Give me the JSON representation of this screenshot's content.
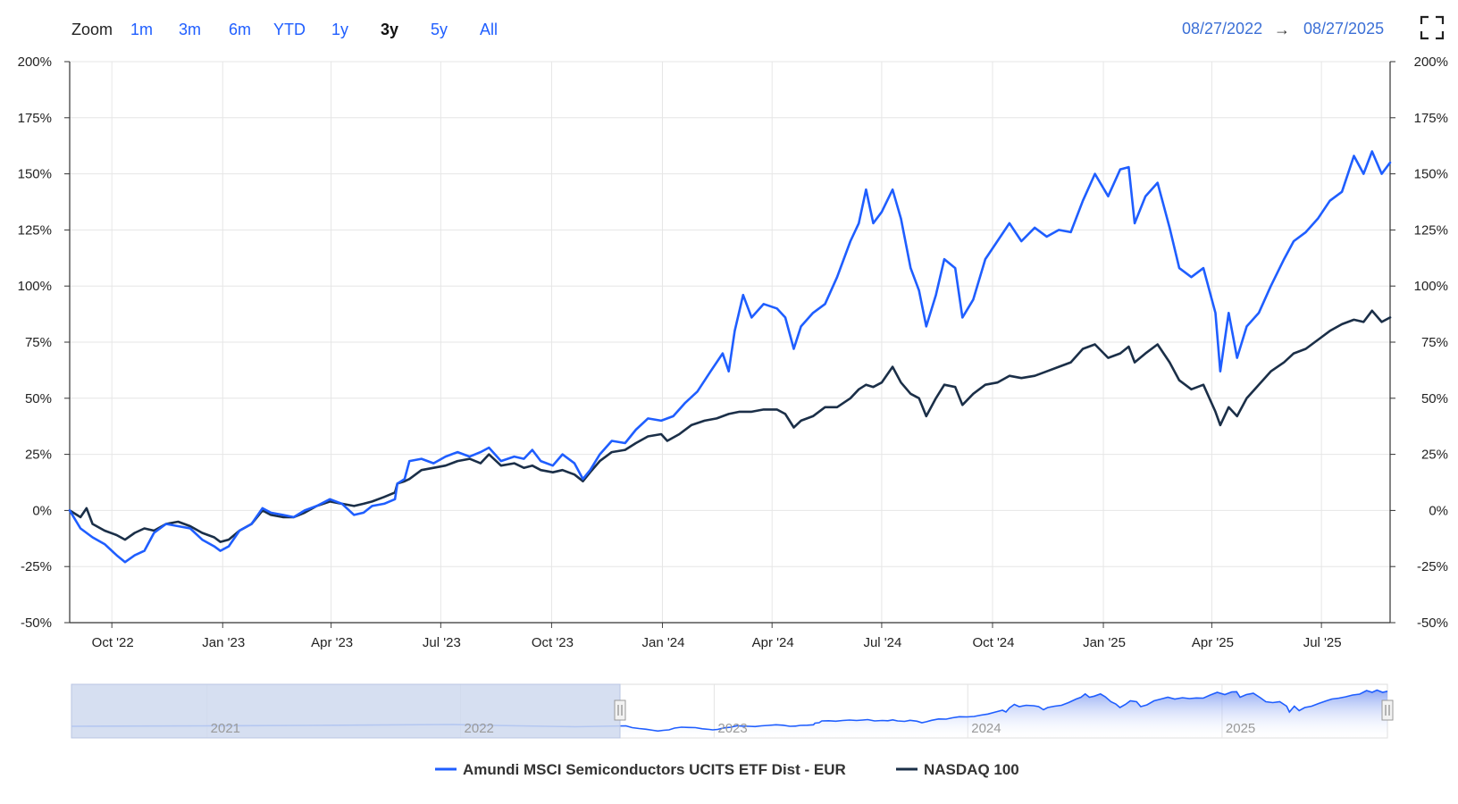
{
  "toolbar": {
    "zoom_label": "Zoom",
    "zoom_buttons": [
      "1m",
      "3m",
      "6m",
      "YTD",
      "1y",
      "3y",
      "5y",
      "All"
    ],
    "active_zoom": "3y",
    "range_from": "08/27/2022",
    "range_arrow": "→",
    "range_to": "08/27/2025",
    "fullscreen_icon": "fullscreen-icon"
  },
  "colors": {
    "etf": "#1f5eff",
    "nasdaq": "#1b2f48",
    "grid": "#e6e6e6",
    "navigator_fill": "#cfd9ee"
  },
  "navigator": {
    "year_labels": [
      "2021",
      "2022",
      "2023",
      "2024",
      "2025"
    ]
  },
  "chart_data": {
    "type": "line",
    "y_ticks": [
      "200%",
      "175%",
      "150%",
      "125%",
      "100%",
      "75%",
      "50%",
      "25%",
      "0%",
      "-25%",
      "-50%"
    ],
    "ylim": [
      -50,
      200
    ],
    "y_unit": "%",
    "x_tick_labels": [
      "Oct '22",
      "Jan '23",
      "Apr '23",
      "Jul '23",
      "Oct '23",
      "Jan '24",
      "Apr '24",
      "Jul '24",
      "Oct '24",
      "Jan '25",
      "Apr '25",
      "Jul '25"
    ],
    "x_tick_dates": [
      "2022-10-01",
      "2023-01-01",
      "2023-04-01",
      "2023-07-01",
      "2023-10-01",
      "2024-01-01",
      "2024-04-01",
      "2024-07-01",
      "2024-10-01",
      "2025-01-01",
      "2025-04-01",
      "2025-07-01"
    ],
    "xlim": [
      "2022-08-27",
      "2025-08-27"
    ],
    "grid": true,
    "legend_position": "bottom",
    "series": [
      {
        "name": "Amundi MSCI Semiconductors UCITS ETF Dist - EUR",
        "color": "#1f5eff",
        "points": [
          [
            "2022-08-27",
            0
          ],
          [
            "2022-09-05",
            -8
          ],
          [
            "2022-09-15",
            -12
          ],
          [
            "2022-09-25",
            -15
          ],
          [
            "2022-10-05",
            -20
          ],
          [
            "2022-10-12",
            -23
          ],
          [
            "2022-10-20",
            -20
          ],
          [
            "2022-10-28",
            -18
          ],
          [
            "2022-11-05",
            -10
          ],
          [
            "2022-11-15",
            -6
          ],
          [
            "2022-11-25",
            -7
          ],
          [
            "2022-12-05",
            -8
          ],
          [
            "2022-12-15",
            -13
          ],
          [
            "2022-12-25",
            -16
          ],
          [
            "2022-12-30",
            -18
          ],
          [
            "2023-01-06",
            -16
          ],
          [
            "2023-01-15",
            -9
          ],
          [
            "2023-01-25",
            -6
          ],
          [
            "2023-02-03",
            1
          ],
          [
            "2023-02-10",
            -1
          ],
          [
            "2023-02-20",
            -2
          ],
          [
            "2023-03-01",
            -3
          ],
          [
            "2023-03-10",
            0
          ],
          [
            "2023-03-20",
            2
          ],
          [
            "2023-03-31",
            5
          ],
          [
            "2023-04-10",
            3
          ],
          [
            "2023-04-20",
            -2
          ],
          [
            "2023-04-28",
            -1
          ],
          [
            "2023-05-05",
            2
          ],
          [
            "2023-05-15",
            3
          ],
          [
            "2023-05-24",
            5
          ],
          [
            "2023-05-26",
            12
          ],
          [
            "2023-06-01",
            14
          ],
          [
            "2023-06-05",
            22
          ],
          [
            "2023-06-15",
            23
          ],
          [
            "2023-06-25",
            21
          ],
          [
            "2023-07-05",
            24
          ],
          [
            "2023-07-15",
            26
          ],
          [
            "2023-07-25",
            24
          ],
          [
            "2023-08-03",
            26
          ],
          [
            "2023-08-10",
            28
          ],
          [
            "2023-08-20",
            22
          ],
          [
            "2023-08-31",
            24
          ],
          [
            "2023-09-08",
            23
          ],
          [
            "2023-09-15",
            27
          ],
          [
            "2023-09-22",
            22
          ],
          [
            "2023-10-02",
            20
          ],
          [
            "2023-10-10",
            25
          ],
          [
            "2023-10-20",
            21
          ],
          [
            "2023-10-27",
            14
          ],
          [
            "2023-11-02",
            18
          ],
          [
            "2023-11-10",
            25
          ],
          [
            "2023-11-20",
            31
          ],
          [
            "2023-12-01",
            30
          ],
          [
            "2023-12-10",
            36
          ],
          [
            "2023-12-20",
            41
          ],
          [
            "2023-12-31",
            40
          ],
          [
            "2024-01-10",
            42
          ],
          [
            "2024-01-20",
            48
          ],
          [
            "2024-01-30",
            53
          ],
          [
            "2024-02-10",
            62
          ],
          [
            "2024-02-20",
            70
          ],
          [
            "2024-02-25",
            62
          ],
          [
            "2024-03-01",
            80
          ],
          [
            "2024-03-08",
            96
          ],
          [
            "2024-03-15",
            86
          ],
          [
            "2024-03-25",
            92
          ],
          [
            "2024-04-05",
            90
          ],
          [
            "2024-04-12",
            86
          ],
          [
            "2024-04-19",
            72
          ],
          [
            "2024-04-25",
            82
          ],
          [
            "2024-05-05",
            88
          ],
          [
            "2024-05-15",
            92
          ],
          [
            "2024-05-25",
            104
          ],
          [
            "2024-06-05",
            120
          ],
          [
            "2024-06-12",
            128
          ],
          [
            "2024-06-18",
            143
          ],
          [
            "2024-06-24",
            128
          ],
          [
            "2024-07-01",
            133
          ],
          [
            "2024-07-10",
            143
          ],
          [
            "2024-07-17",
            130
          ],
          [
            "2024-07-25",
            108
          ],
          [
            "2024-08-01",
            98
          ],
          [
            "2024-08-07",
            82
          ],
          [
            "2024-08-15",
            96
          ],
          [
            "2024-08-22",
            112
          ],
          [
            "2024-08-31",
            108
          ],
          [
            "2024-09-06",
            86
          ],
          [
            "2024-09-15",
            94
          ],
          [
            "2024-09-25",
            112
          ],
          [
            "2024-10-05",
            120
          ],
          [
            "2024-10-15",
            128
          ],
          [
            "2024-10-25",
            120
          ],
          [
            "2024-11-05",
            126
          ],
          [
            "2024-11-15",
            122
          ],
          [
            "2024-11-25",
            125
          ],
          [
            "2024-12-05",
            124
          ],
          [
            "2024-12-15",
            138
          ],
          [
            "2024-12-25",
            150
          ],
          [
            "2025-01-05",
            140
          ],
          [
            "2025-01-15",
            152
          ],
          [
            "2025-01-22",
            153
          ],
          [
            "2025-01-27",
            128
          ],
          [
            "2025-02-05",
            140
          ],
          [
            "2025-02-15",
            146
          ],
          [
            "2025-02-25",
            126
          ],
          [
            "2025-03-05",
            108
          ],
          [
            "2025-03-15",
            104
          ],
          [
            "2025-03-25",
            108
          ],
          [
            "2025-04-04",
            88
          ],
          [
            "2025-04-08",
            62
          ],
          [
            "2025-04-15",
            88
          ],
          [
            "2025-04-22",
            68
          ],
          [
            "2025-04-30",
            82
          ],
          [
            "2025-05-10",
            88
          ],
          [
            "2025-05-20",
            100
          ],
          [
            "2025-05-31",
            112
          ],
          [
            "2025-06-08",
            120
          ],
          [
            "2025-06-18",
            124
          ],
          [
            "2025-06-28",
            130
          ],
          [
            "2025-07-08",
            138
          ],
          [
            "2025-07-18",
            142
          ],
          [
            "2025-07-28",
            158
          ],
          [
            "2025-08-05",
            150
          ],
          [
            "2025-08-12",
            160
          ],
          [
            "2025-08-20",
            150
          ],
          [
            "2025-08-27",
            155
          ]
        ]
      },
      {
        "name": "NASDAQ 100",
        "color": "#1b2f48",
        "points": [
          [
            "2022-08-27",
            0
          ],
          [
            "2022-09-05",
            -3
          ],
          [
            "2022-09-10",
            1
          ],
          [
            "2022-09-15",
            -6
          ],
          [
            "2022-09-25",
            -9
          ],
          [
            "2022-10-05",
            -11
          ],
          [
            "2022-10-12",
            -13
          ],
          [
            "2022-10-20",
            -10
          ],
          [
            "2022-10-28",
            -8
          ],
          [
            "2022-11-05",
            -9
          ],
          [
            "2022-11-15",
            -6
          ],
          [
            "2022-11-25",
            -5
          ],
          [
            "2022-12-05",
            -7
          ],
          [
            "2022-12-15",
            -10
          ],
          [
            "2022-12-25",
            -12
          ],
          [
            "2022-12-30",
            -14
          ],
          [
            "2023-01-06",
            -13
          ],
          [
            "2023-01-15",
            -9
          ],
          [
            "2023-01-25",
            -6
          ],
          [
            "2023-02-03",
            0
          ],
          [
            "2023-02-10",
            -2
          ],
          [
            "2023-02-20",
            -3
          ],
          [
            "2023-03-01",
            -3
          ],
          [
            "2023-03-10",
            -1
          ],
          [
            "2023-03-20",
            2
          ],
          [
            "2023-03-31",
            4
          ],
          [
            "2023-04-10",
            3
          ],
          [
            "2023-04-20",
            2
          ],
          [
            "2023-04-28",
            3
          ],
          [
            "2023-05-05",
            4
          ],
          [
            "2023-05-15",
            6
          ],
          [
            "2023-05-24",
            8
          ],
          [
            "2023-05-26",
            12
          ],
          [
            "2023-06-01",
            13
          ],
          [
            "2023-06-05",
            14
          ],
          [
            "2023-06-15",
            18
          ],
          [
            "2023-06-25",
            19
          ],
          [
            "2023-07-05",
            20
          ],
          [
            "2023-07-15",
            22
          ],
          [
            "2023-07-25",
            23
          ],
          [
            "2023-08-03",
            21
          ],
          [
            "2023-08-10",
            25
          ],
          [
            "2023-08-20",
            20
          ],
          [
            "2023-08-31",
            21
          ],
          [
            "2023-09-08",
            19
          ],
          [
            "2023-09-15",
            20
          ],
          [
            "2023-09-22",
            18
          ],
          [
            "2023-10-02",
            17
          ],
          [
            "2023-10-10",
            18
          ],
          [
            "2023-10-20",
            16
          ],
          [
            "2023-10-27",
            13
          ],
          [
            "2023-11-02",
            17
          ],
          [
            "2023-11-10",
            22
          ],
          [
            "2023-11-20",
            26
          ],
          [
            "2023-12-01",
            27
          ],
          [
            "2023-12-10",
            30
          ],
          [
            "2023-12-20",
            33
          ],
          [
            "2023-12-31",
            34
          ],
          [
            "2024-01-05",
            31
          ],
          [
            "2024-01-15",
            34
          ],
          [
            "2024-01-25",
            38
          ],
          [
            "2024-02-05",
            40
          ],
          [
            "2024-02-15",
            41
          ],
          [
            "2024-02-25",
            43
          ],
          [
            "2024-03-05",
            44
          ],
          [
            "2024-03-15",
            44
          ],
          [
            "2024-03-25",
            45
          ],
          [
            "2024-04-05",
            45
          ],
          [
            "2024-04-12",
            43
          ],
          [
            "2024-04-19",
            37
          ],
          [
            "2024-04-25",
            40
          ],
          [
            "2024-05-05",
            42
          ],
          [
            "2024-05-15",
            46
          ],
          [
            "2024-05-25",
            46
          ],
          [
            "2024-06-05",
            50
          ],
          [
            "2024-06-12",
            54
          ],
          [
            "2024-06-18",
            56
          ],
          [
            "2024-06-24",
            55
          ],
          [
            "2024-07-01",
            57
          ],
          [
            "2024-07-10",
            64
          ],
          [
            "2024-07-17",
            57
          ],
          [
            "2024-07-25",
            52
          ],
          [
            "2024-08-01",
            50
          ],
          [
            "2024-08-07",
            42
          ],
          [
            "2024-08-15",
            50
          ],
          [
            "2024-08-22",
            56
          ],
          [
            "2024-08-31",
            55
          ],
          [
            "2024-09-06",
            47
          ],
          [
            "2024-09-15",
            52
          ],
          [
            "2024-09-25",
            56
          ],
          [
            "2024-10-05",
            57
          ],
          [
            "2024-10-15",
            60
          ],
          [
            "2024-10-25",
            59
          ],
          [
            "2024-11-05",
            60
          ],
          [
            "2024-11-15",
            62
          ],
          [
            "2024-11-25",
            64
          ],
          [
            "2024-12-05",
            66
          ],
          [
            "2024-12-15",
            72
          ],
          [
            "2024-12-25",
            74
          ],
          [
            "2025-01-05",
            68
          ],
          [
            "2025-01-15",
            70
          ],
          [
            "2025-01-22",
            73
          ],
          [
            "2025-01-27",
            66
          ],
          [
            "2025-02-05",
            70
          ],
          [
            "2025-02-15",
            74
          ],
          [
            "2025-02-25",
            66
          ],
          [
            "2025-03-05",
            58
          ],
          [
            "2025-03-15",
            54
          ],
          [
            "2025-03-25",
            56
          ],
          [
            "2025-04-04",
            44
          ],
          [
            "2025-04-08",
            38
          ],
          [
            "2025-04-15",
            46
          ],
          [
            "2025-04-22",
            42
          ],
          [
            "2025-04-30",
            50
          ],
          [
            "2025-05-10",
            56
          ],
          [
            "2025-05-20",
            62
          ],
          [
            "2025-05-31",
            66
          ],
          [
            "2025-06-08",
            70
          ],
          [
            "2025-06-18",
            72
          ],
          [
            "2025-06-28",
            76
          ],
          [
            "2025-07-08",
            80
          ],
          [
            "2025-07-18",
            83
          ],
          [
            "2025-07-28",
            85
          ],
          [
            "2025-08-05",
            84
          ],
          [
            "2025-08-12",
            89
          ],
          [
            "2025-08-20",
            84
          ],
          [
            "2025-08-27",
            86
          ]
        ]
      }
    ]
  }
}
